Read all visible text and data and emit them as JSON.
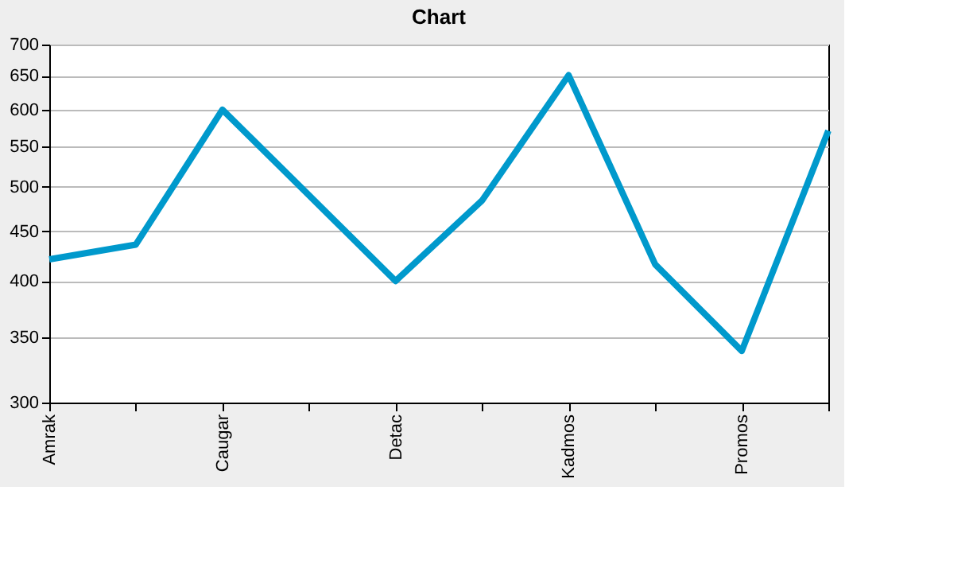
{
  "chart_data": {
    "type": "line",
    "title": "Chart",
    "categories": [
      "Amrak",
      null,
      "Caugar",
      null,
      "Detac",
      null,
      "Kadmos",
      null,
      "Promos",
      null
    ],
    "series": [
      {
        "color": "#0099cc",
        "values": [
          421,
          436,
          600,
          490,
          400,
          484,
          651,
          416,
          339,
          571
        ]
      }
    ],
    "log": "y",
    "ylim": [
      300,
      700
    ],
    "yticks": [
      300,
      350,
      400,
      450,
      500,
      550,
      600,
      650,
      700
    ],
    "grid": "y",
    "marker": "none",
    "line_style": "solid",
    "legend": false
  }
}
